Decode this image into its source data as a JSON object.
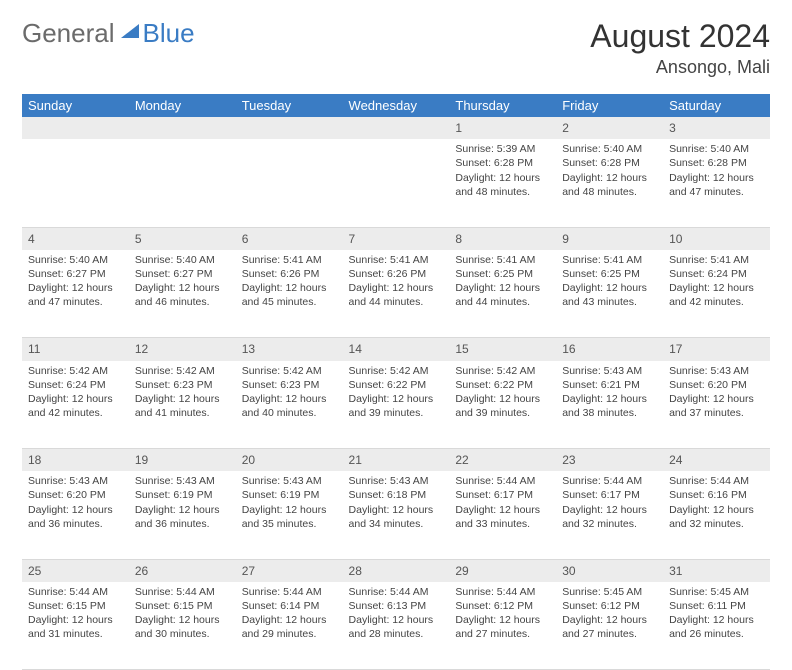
{
  "brand": {
    "general": "General",
    "blue": "Blue"
  },
  "title": "August 2024",
  "location": "Ansongo, Mali",
  "header_color": "#3a7cc4",
  "daynum_bg": "#ececec",
  "days": [
    "Sunday",
    "Monday",
    "Tuesday",
    "Wednesday",
    "Thursday",
    "Friday",
    "Saturday"
  ],
  "weeks": [
    [
      null,
      null,
      null,
      null,
      {
        "n": "1",
        "sr": "5:39 AM",
        "ss": "6:28 PM",
        "dl": "12 hours and 48 minutes."
      },
      {
        "n": "2",
        "sr": "5:40 AM",
        "ss": "6:28 PM",
        "dl": "12 hours and 48 minutes."
      },
      {
        "n": "3",
        "sr": "5:40 AM",
        "ss": "6:28 PM",
        "dl": "12 hours and 47 minutes."
      }
    ],
    [
      {
        "n": "4",
        "sr": "5:40 AM",
        "ss": "6:27 PM",
        "dl": "12 hours and 47 minutes."
      },
      {
        "n": "5",
        "sr": "5:40 AM",
        "ss": "6:27 PM",
        "dl": "12 hours and 46 minutes."
      },
      {
        "n": "6",
        "sr": "5:41 AM",
        "ss": "6:26 PM",
        "dl": "12 hours and 45 minutes."
      },
      {
        "n": "7",
        "sr": "5:41 AM",
        "ss": "6:26 PM",
        "dl": "12 hours and 44 minutes."
      },
      {
        "n": "8",
        "sr": "5:41 AM",
        "ss": "6:25 PM",
        "dl": "12 hours and 44 minutes."
      },
      {
        "n": "9",
        "sr": "5:41 AM",
        "ss": "6:25 PM",
        "dl": "12 hours and 43 minutes."
      },
      {
        "n": "10",
        "sr": "5:41 AM",
        "ss": "6:24 PM",
        "dl": "12 hours and 42 minutes."
      }
    ],
    [
      {
        "n": "11",
        "sr": "5:42 AM",
        "ss": "6:24 PM",
        "dl": "12 hours and 42 minutes."
      },
      {
        "n": "12",
        "sr": "5:42 AM",
        "ss": "6:23 PM",
        "dl": "12 hours and 41 minutes."
      },
      {
        "n": "13",
        "sr": "5:42 AM",
        "ss": "6:23 PM",
        "dl": "12 hours and 40 minutes."
      },
      {
        "n": "14",
        "sr": "5:42 AM",
        "ss": "6:22 PM",
        "dl": "12 hours and 39 minutes."
      },
      {
        "n": "15",
        "sr": "5:42 AM",
        "ss": "6:22 PM",
        "dl": "12 hours and 39 minutes."
      },
      {
        "n": "16",
        "sr": "5:43 AM",
        "ss": "6:21 PM",
        "dl": "12 hours and 38 minutes."
      },
      {
        "n": "17",
        "sr": "5:43 AM",
        "ss": "6:20 PM",
        "dl": "12 hours and 37 minutes."
      }
    ],
    [
      {
        "n": "18",
        "sr": "5:43 AM",
        "ss": "6:20 PM",
        "dl": "12 hours and 36 minutes."
      },
      {
        "n": "19",
        "sr": "5:43 AM",
        "ss": "6:19 PM",
        "dl": "12 hours and 36 minutes."
      },
      {
        "n": "20",
        "sr": "5:43 AM",
        "ss": "6:19 PM",
        "dl": "12 hours and 35 minutes."
      },
      {
        "n": "21",
        "sr": "5:43 AM",
        "ss": "6:18 PM",
        "dl": "12 hours and 34 minutes."
      },
      {
        "n": "22",
        "sr": "5:44 AM",
        "ss": "6:17 PM",
        "dl": "12 hours and 33 minutes."
      },
      {
        "n": "23",
        "sr": "5:44 AM",
        "ss": "6:17 PM",
        "dl": "12 hours and 32 minutes."
      },
      {
        "n": "24",
        "sr": "5:44 AM",
        "ss": "6:16 PM",
        "dl": "12 hours and 32 minutes."
      }
    ],
    [
      {
        "n": "25",
        "sr": "5:44 AM",
        "ss": "6:15 PM",
        "dl": "12 hours and 31 minutes."
      },
      {
        "n": "26",
        "sr": "5:44 AM",
        "ss": "6:15 PM",
        "dl": "12 hours and 30 minutes."
      },
      {
        "n": "27",
        "sr": "5:44 AM",
        "ss": "6:14 PM",
        "dl": "12 hours and 29 minutes."
      },
      {
        "n": "28",
        "sr": "5:44 AM",
        "ss": "6:13 PM",
        "dl": "12 hours and 28 minutes."
      },
      {
        "n": "29",
        "sr": "5:44 AM",
        "ss": "6:12 PM",
        "dl": "12 hours and 27 minutes."
      },
      {
        "n": "30",
        "sr": "5:45 AM",
        "ss": "6:12 PM",
        "dl": "12 hours and 27 minutes."
      },
      {
        "n": "31",
        "sr": "5:45 AM",
        "ss": "6:11 PM",
        "dl": "12 hours and 26 minutes."
      }
    ]
  ],
  "labels": {
    "sunrise": "Sunrise:",
    "sunset": "Sunset:",
    "daylight": "Daylight:"
  }
}
